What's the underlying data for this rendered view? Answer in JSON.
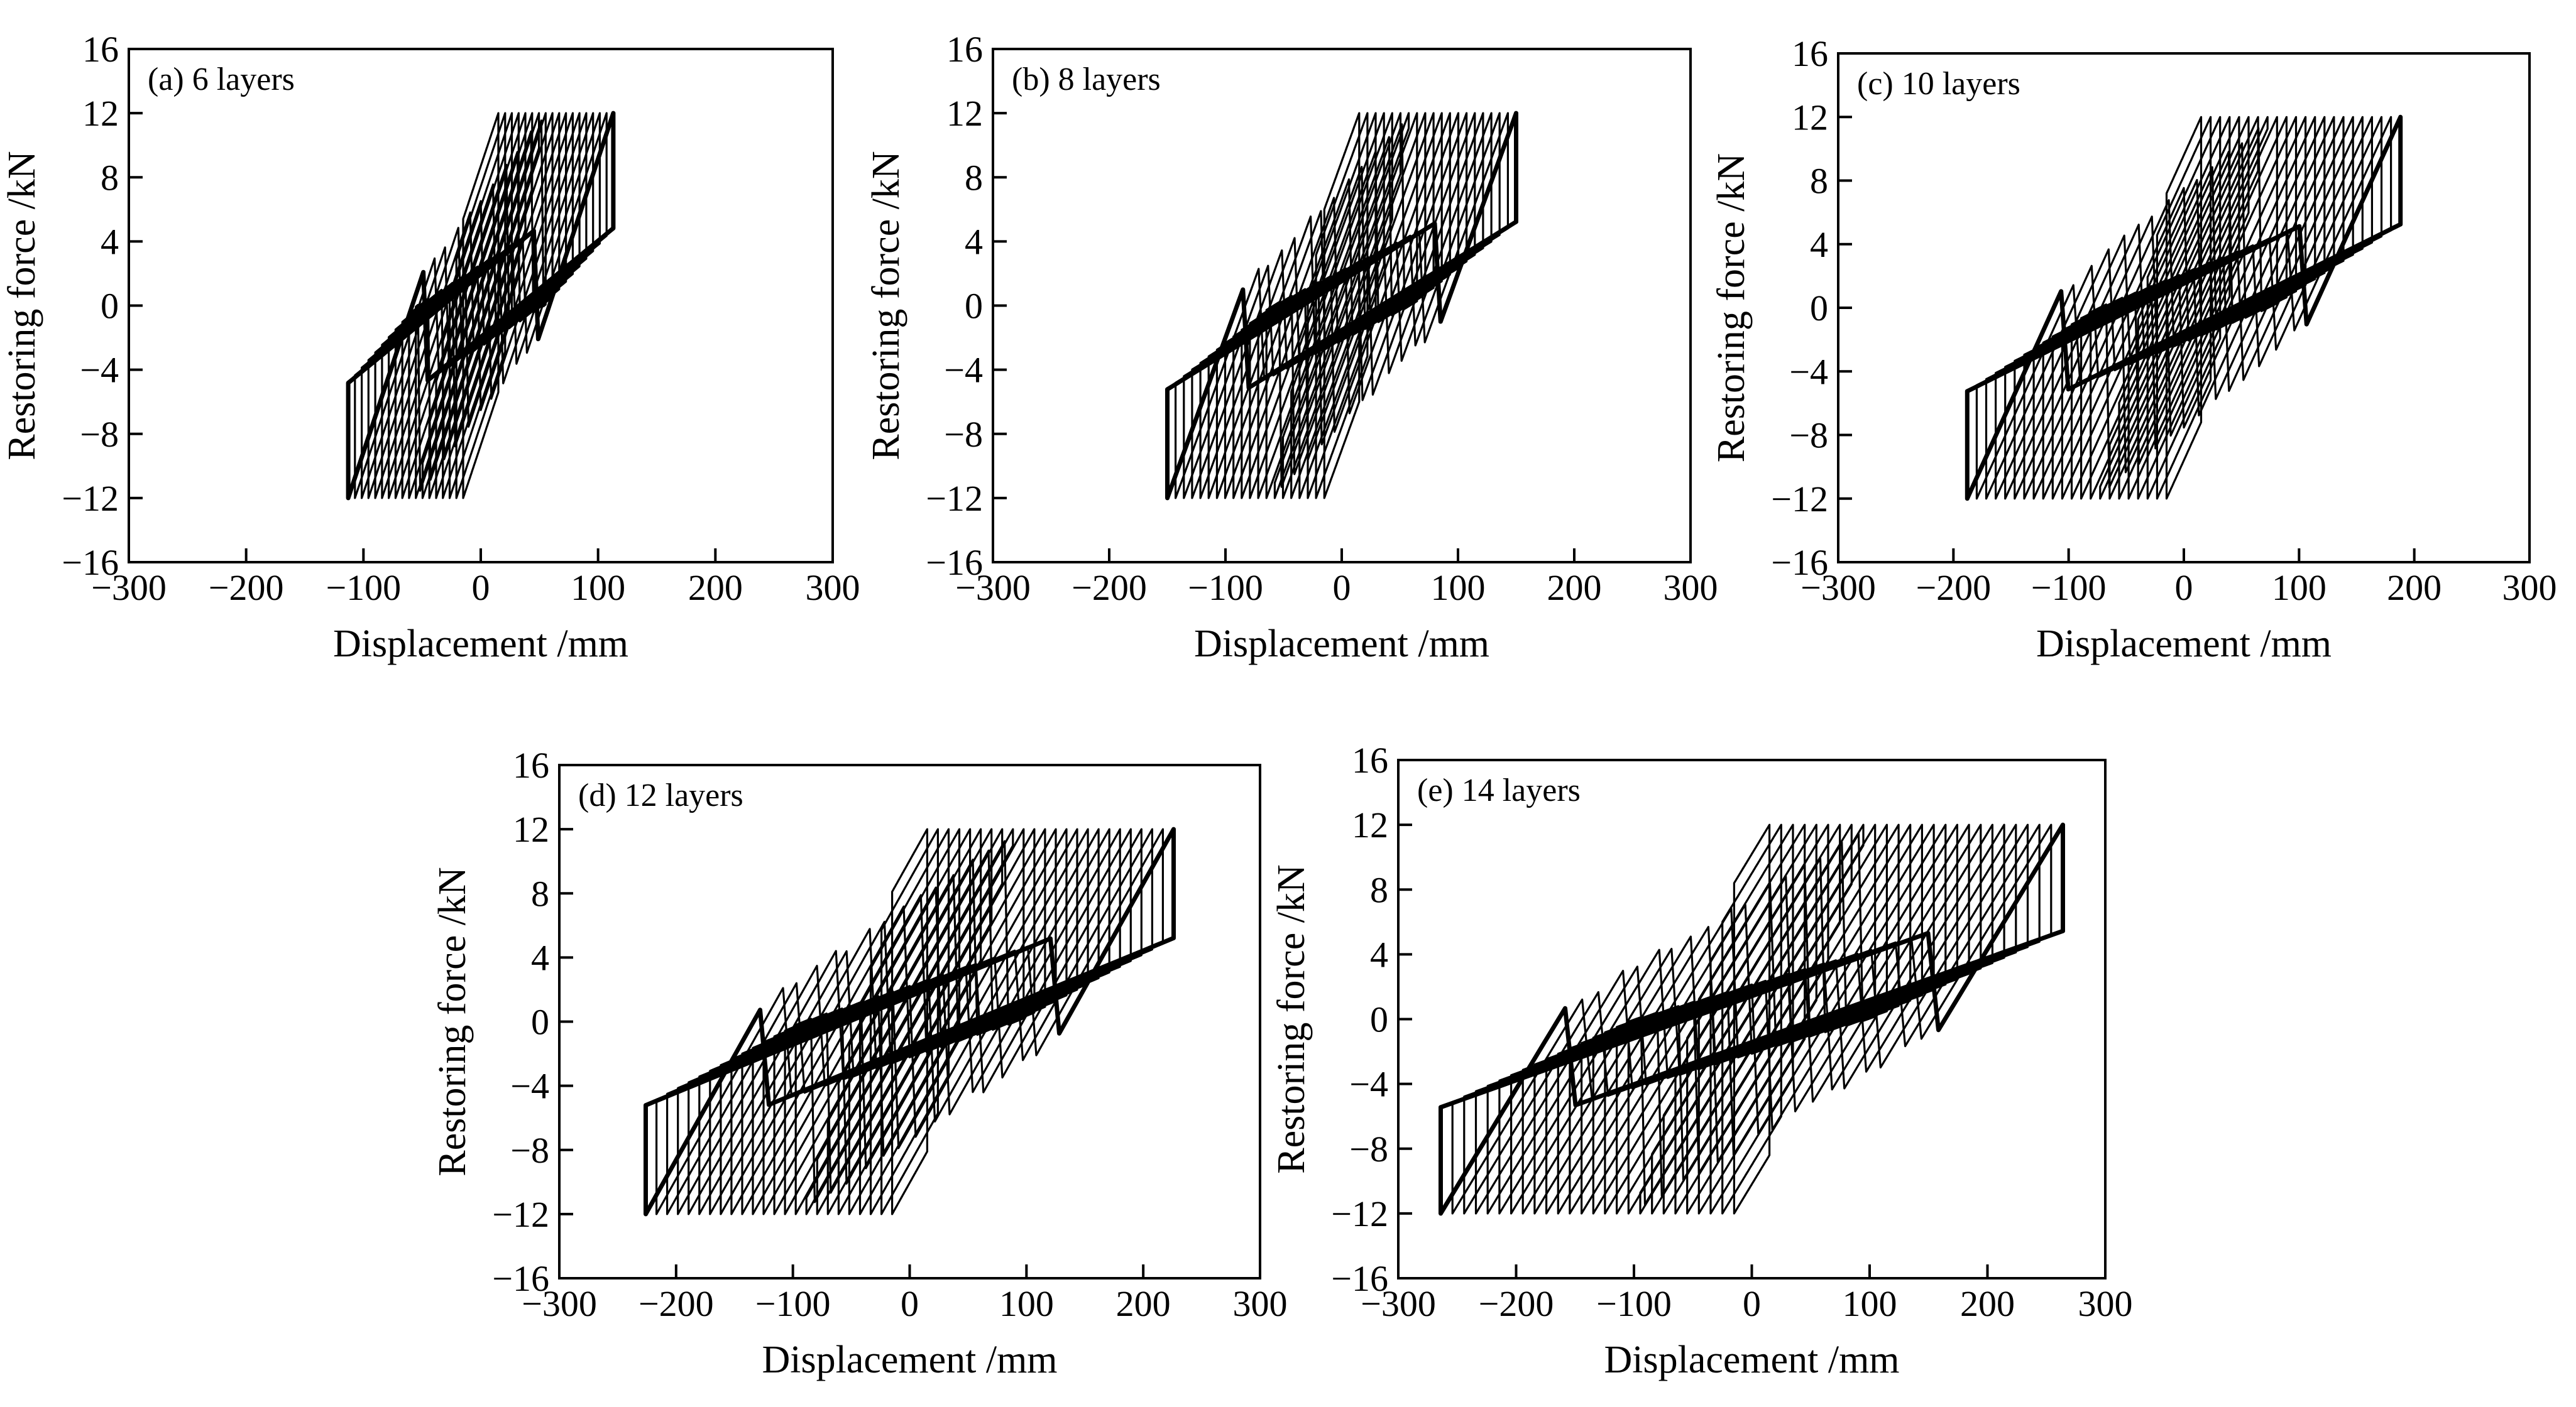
{
  "figure": {
    "description_free": true
  },
  "chart_data": [
    {
      "type": "line",
      "panel_label": "(a) 6 layers",
      "xlabel": "Displacement /mm",
      "ylabel": "Restoring force /kN",
      "xlim": [
        -300,
        300
      ],
      "ylim": [
        -16,
        16
      ],
      "xticks": [
        -300,
        -200,
        -100,
        0,
        100,
        200,
        300
      ],
      "yticks": [
        -16,
        -12,
        -8,
        -4,
        0,
        4,
        8,
        12,
        16
      ],
      "xtick_labels": [
        "−300",
        "−200",
        "−100",
        "0",
        "100",
        "200",
        "300"
      ],
      "ytick_labels": [
        "−16",
        "−12",
        "−8",
        "−4",
        "0",
        "4",
        "8",
        "12",
        "16"
      ],
      "hysteresis": {
        "max_displacement": 113,
        "max_force": 12,
        "inner_amplitude": 15,
        "loop_count": 18,
        "elastic_stiffness": 0.22,
        "post_yield_stiffness": 0.06
      }
    },
    {
      "type": "line",
      "panel_label": "(b) 8 layers",
      "xlabel": "Displacement /mm",
      "ylabel": "Restoring force /kN",
      "xlim": [
        -300,
        300
      ],
      "ylim": [
        -16,
        16
      ],
      "xticks": [
        -300,
        -200,
        -100,
        0,
        100,
        200,
        300
      ],
      "yticks": [
        -16,
        -12,
        -8,
        -4,
        0,
        4,
        8,
        12,
        16
      ],
      "xtick_labels": [
        "−300",
        "−200",
        "−100",
        "0",
        "100",
        "200",
        "300"
      ],
      "ytick_labels": [
        "−16",
        "−12",
        "−8",
        "−4",
        "0",
        "4",
        "8",
        "12",
        "16"
      ],
      "hysteresis": {
        "max_displacement": 150,
        "max_force": 12,
        "inner_amplitude": 15,
        "loop_count": 20,
        "elastic_stiffness": 0.2,
        "post_yield_stiffness": 0.045
      }
    },
    {
      "type": "line",
      "panel_label": "(c) 10 layers",
      "xlabel": "Displacement /mm",
      "ylabel": "Restoring force /kN",
      "xlim": [
        -300,
        300
      ],
      "ylim": [
        -16,
        16
      ],
      "xticks": [
        -300,
        -200,
        -100,
        0,
        100,
        200,
        300
      ],
      "yticks": [
        -16,
        -12,
        -8,
        -4,
        0,
        4,
        8,
        12,
        16
      ],
      "xtick_labels": [
        "−300",
        "−200",
        "−100",
        "0",
        "100",
        "200",
        "300"
      ],
      "ytick_labels": [
        "−16",
        "−12",
        "−8",
        "−4",
        "0",
        "4",
        "8",
        "12",
        "16"
      ],
      "hysteresis": {
        "max_displacement": 188,
        "max_force": 12,
        "inner_amplitude": 15,
        "loop_count": 22,
        "elastic_stiffness": 0.16,
        "post_yield_stiffness": 0.036
      }
    },
    {
      "type": "line",
      "panel_label": "(d) 12 layers",
      "xlabel": "Displacement /mm",
      "ylabel": "Restoring force /kN",
      "xlim": [
        -300,
        300
      ],
      "ylim": [
        -16,
        16
      ],
      "xticks": [
        -300,
        -200,
        -100,
        0,
        100,
        200,
        300
      ],
      "yticks": [
        -16,
        -12,
        -8,
        -4,
        0,
        4,
        8,
        12,
        16
      ],
      "xtick_labels": [
        "−300",
        "−200",
        "−100",
        "0",
        "100",
        "200",
        "300"
      ],
      "ytick_labels": [
        "−16",
        "−12",
        "−8",
        "−4",
        "0",
        "4",
        "8",
        "12",
        "16"
      ],
      "hysteresis": {
        "max_displacement": 226,
        "max_force": 12,
        "inner_amplitude": 15,
        "loop_count": 24,
        "elastic_stiffness": 0.13,
        "post_yield_stiffness": 0.03
      }
    },
    {
      "type": "line",
      "panel_label": "(e) 14 layers",
      "xlabel": "Displacement /mm",
      "ylabel": "Restoring force /kN",
      "xlim": [
        -300,
        300
      ],
      "ylim": [
        -16,
        16
      ],
      "xticks": [
        -300,
        -200,
        -100,
        0,
        100,
        200,
        300
      ],
      "yticks": [
        -16,
        -12,
        -8,
        -4,
        0,
        4,
        8,
        12,
        16
      ],
      "xtick_labels": [
        "−300",
        "−200",
        "−100",
        "0",
        "100",
        "200",
        "300"
      ],
      "ytick_labels": [
        "−16",
        "−12",
        "−8",
        "−4",
        "0",
        "4",
        "8",
        "12",
        "16"
      ],
      "hysteresis": {
        "max_displacement": 264,
        "max_force": 12,
        "inner_amplitude": 15,
        "loop_count": 26,
        "elastic_stiffness": 0.12,
        "post_yield_stiffness": 0.026
      }
    }
  ]
}
